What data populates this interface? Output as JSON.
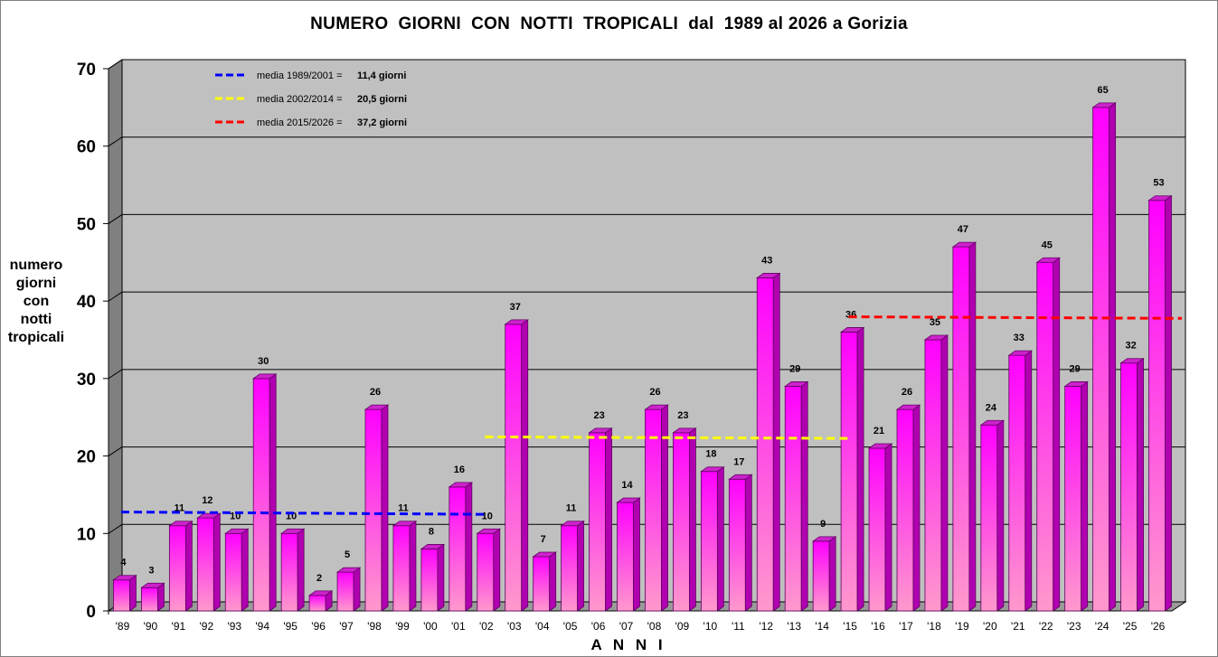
{
  "chart_data": {
    "type": "bar",
    "title": "NUMERO  GIORNI  CON  NOTTI  TROPICALI  dal  1989 al 2026 a Gorizia",
    "ylabel_lines": [
      "numero",
      "giorni",
      "con",
      "notti",
      "tropicali"
    ],
    "xlabel": "A N N I",
    "ylim": [
      0,
      70
    ],
    "yticks": [
      0,
      10,
      20,
      30,
      40,
      50,
      60,
      70
    ],
    "grid": true,
    "legend_position": "top-left",
    "categories": [
      "'89",
      "'90",
      "'91",
      "'92",
      "'93",
      "'94",
      "'95",
      "'96",
      "'97",
      "'98",
      "'99",
      "'00",
      "'01",
      "'02",
      "'03",
      "'04",
      "'05",
      "'06",
      "'07",
      "'08",
      "'09",
      "'10",
      "'11",
      "'12",
      "'13",
      "'14",
      "'15",
      "'16",
      "'17",
      "'18",
      "'19",
      "'20",
      "'21",
      "'22",
      "'23",
      "'24",
      "'25",
      "'26"
    ],
    "values": [
      4,
      3,
      11,
      12,
      10,
      30,
      10,
      2,
      5,
      26,
      11,
      8,
      16,
      10,
      37,
      7,
      11,
      23,
      14,
      26,
      23,
      18,
      17,
      43,
      29,
      9,
      36,
      21,
      26,
      35,
      47,
      24,
      33,
      45,
      29,
      65,
      32,
      53
    ],
    "averages": [
      {
        "label": "media 1989/2001 =",
        "value_text": "11,4 giorni",
        "color": "#0000ff",
        "from_index": 0,
        "to_index": 13,
        "y_start": 12.3,
        "y_end": 12.0
      },
      {
        "label": "media 2002/2014 =",
        "value_text": "20,5 giorni",
        "color": "#ffff00",
        "from_index": 13,
        "to_index": 26,
        "y_start": 22.0,
        "y_end": 21.8
      },
      {
        "label": "media 2015/2026 =",
        "value_text": "37,2 giorni",
        "color": "#ff0000",
        "from_index": 26,
        "to_index": 38,
        "y_start": 37.5,
        "y_end": 37.3
      }
    ],
    "colors": {
      "bar_top": "#ff00ff",
      "bar_bottom": "#ff99cc",
      "bar_side": "#b000b0",
      "bar_cap": "#cc22cc",
      "plot_bg": "#c0c0c0",
      "wall_side": "#808080",
      "floor": "#9a9a9a",
      "grid": "#000000"
    }
  }
}
